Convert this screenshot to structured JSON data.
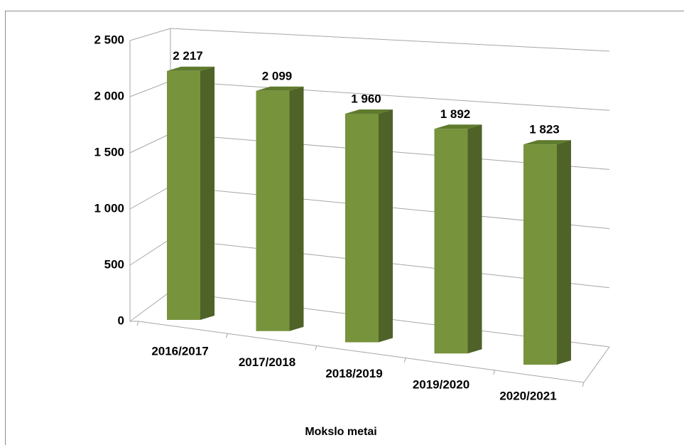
{
  "chart_data": {
    "type": "bar3d",
    "categories": [
      "2016/2017",
      "2017/2018",
      "2018/2019",
      "2019/2020",
      "2020/2021"
    ],
    "values": [
      2217,
      2099,
      1960,
      1892,
      1823
    ],
    "value_labels": [
      "2 217",
      "2 099",
      "1 960",
      "1 892",
      "1 823"
    ],
    "color": "#77933c",
    "xlabel": "Mokslo metai",
    "ylim": [
      0,
      2500
    ],
    "yticks": [
      0,
      500,
      {
        "value": 1000,
        "label": "1 000"
      },
      {
        "value": 1500,
        "label": "1 500"
      },
      {
        "value": 2000,
        "label": "2 000"
      },
      {
        "value": 2500,
        "label": "2 500"
      }
    ],
    "grid": true
  }
}
